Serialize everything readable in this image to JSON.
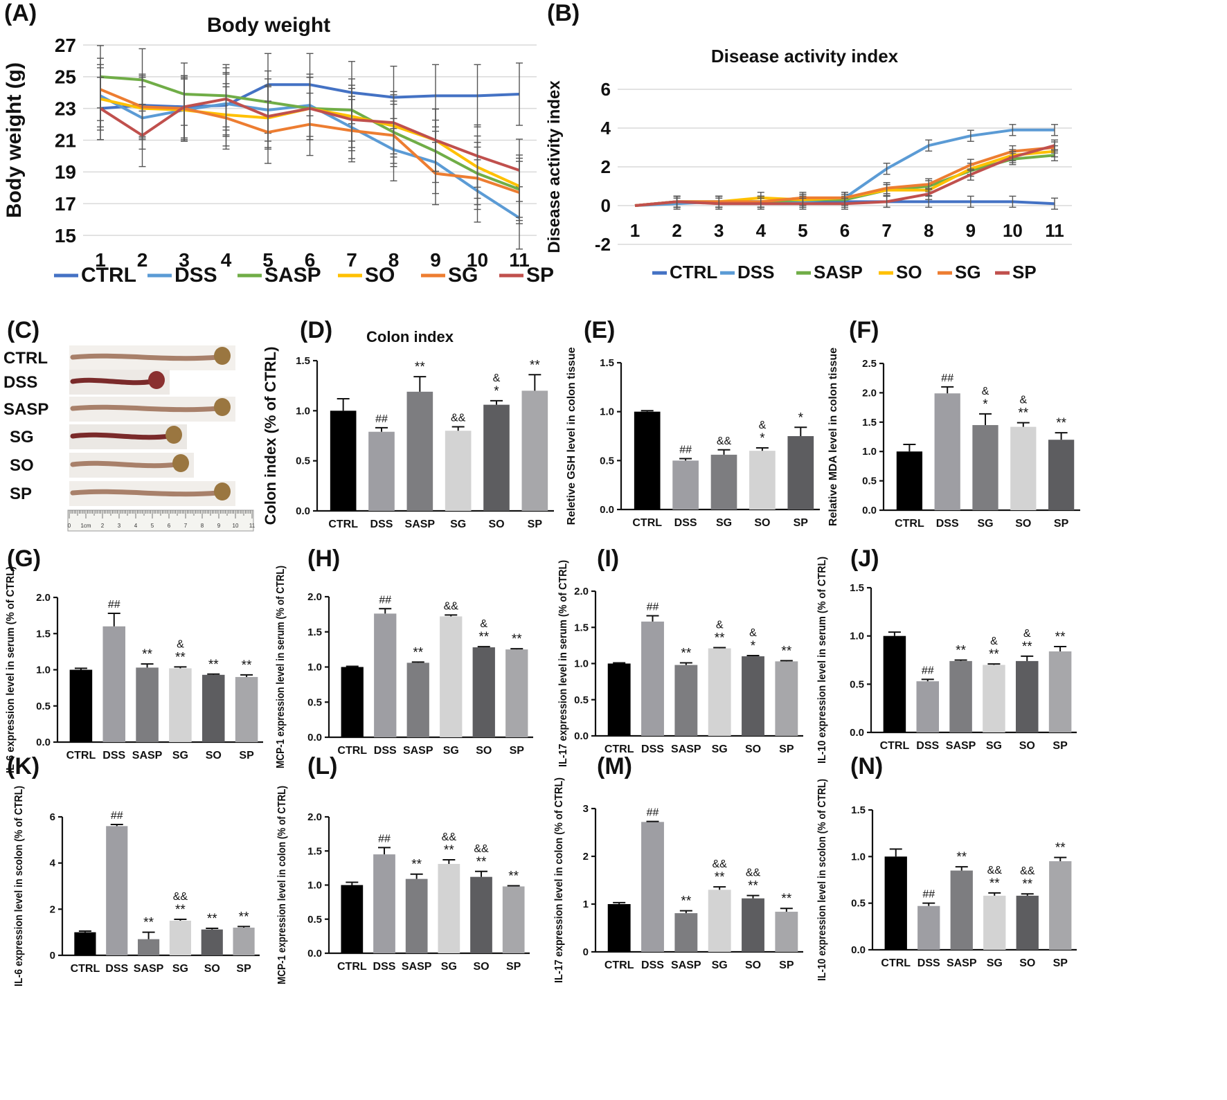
{
  "colors": {
    "CTRL": "#4472c4",
    "DSS": "#5b9bd5",
    "SASP": "#70ad47",
    "SO": "#ffc000",
    "SG": "#ed7d31",
    "SP": "#c0504d"
  },
  "chart_data": [
    {
      "id": "A",
      "panel_label": "(A)",
      "type": "line",
      "title": "Body weight",
      "xlabel": "",
      "ylabel": "Body weight (g)",
      "ylim": [
        15,
        27
      ],
      "yticks": [
        "15",
        "17",
        "19",
        "21",
        "23",
        "25",
        "27"
      ],
      "xticks": [
        "1",
        "2",
        "3",
        "4",
        "5",
        "6",
        "7",
        "8",
        "9",
        "10",
        "11"
      ],
      "grid": true,
      "series": [
        {
          "name": "CTRL",
          "values": [
            23.0,
            23.2,
            23.1,
            23.2,
            24.5,
            24.5,
            24.0,
            23.7,
            23.8,
            23.8,
            23.9
          ]
        },
        {
          "name": "DSS",
          "values": [
            23.8,
            22.4,
            22.9,
            23.3,
            22.9,
            23.2,
            21.8,
            20.4,
            19.6,
            17.8,
            16.1
          ]
        },
        {
          "name": "SASP",
          "values": [
            25.0,
            24.8,
            23.9,
            23.8,
            23.4,
            23.0,
            22.9,
            21.5,
            20.3,
            18.9,
            17.9
          ]
        },
        {
          "name": "SO",
          "values": [
            23.6,
            23.0,
            22.9,
            22.6,
            22.4,
            23.0,
            22.5,
            21.9,
            21.0,
            19.3,
            18.1
          ]
        },
        {
          "name": "SG",
          "values": [
            24.2,
            23.1,
            23.0,
            22.4,
            21.5,
            22.0,
            21.6,
            21.3,
            18.9,
            18.6,
            17.7
          ]
        },
        {
          "name": "SP",
          "values": [
            23.0,
            21.3,
            23.1,
            23.6,
            22.5,
            23.0,
            22.3,
            22.1,
            21.0,
            20.0,
            19.1
          ]
        }
      ]
    },
    {
      "id": "B",
      "panel_label": "(B)",
      "type": "line",
      "title": "Disease activity index",
      "xlabel": "",
      "ylabel": "Disease activity index",
      "ylim": [
        -2,
        6
      ],
      "yticks": [
        "-2",
        "0",
        "2",
        "4",
        "6"
      ],
      "xticks": [
        "1",
        "2",
        "3",
        "4",
        "5",
        "6",
        "7",
        "8",
        "9",
        "10",
        "11"
      ],
      "grid": true,
      "series": [
        {
          "name": "CTRL",
          "values": [
            0,
            0.2,
            0.2,
            0.2,
            0.2,
            0.2,
            0.2,
            0.2,
            0.2,
            0.2,
            0.1
          ]
        },
        {
          "name": "DSS",
          "values": [
            0,
            0.1,
            0.2,
            0.2,
            0.2,
            0.4,
            1.9,
            3.1,
            3.6,
            3.9,
            3.9
          ]
        },
        {
          "name": "SASP",
          "values": [
            0,
            0.2,
            0.2,
            0.2,
            0.3,
            0.3,
            0.8,
            1.0,
            1.8,
            2.4,
            2.6
          ]
        },
        {
          "name": "SO",
          "values": [
            0,
            0.2,
            0.2,
            0.4,
            0.3,
            0.4,
            0.8,
            0.8,
            1.9,
            2.6,
            2.8
          ]
        },
        {
          "name": "SG",
          "values": [
            0,
            0.2,
            0.2,
            0.2,
            0.4,
            0.4,
            0.9,
            1.1,
            2.1,
            2.8,
            3.0
          ]
        },
        {
          "name": "SP",
          "values": [
            0,
            0.2,
            0.1,
            0.1,
            0.1,
            0.1,
            0.2,
            0.6,
            1.6,
            2.5,
            3.1
          ]
        }
      ]
    },
    {
      "id": "D",
      "panel_label": "(D)",
      "type": "bar",
      "title": "Colon index",
      "ylabel": "Colon index (% of CTRL)",
      "ylim": [
        0,
        1.5
      ],
      "yticks": [
        "0.0",
        "0.5",
        "1.0",
        "1.5"
      ],
      "categories": [
        "CTRL",
        "DSS",
        "SASP",
        "SG",
        "SO",
        "SP"
      ],
      "values": [
        1.0,
        0.79,
        1.19,
        0.8,
        1.06,
        1.2
      ],
      "errors": [
        0.12,
        0.04,
        0.15,
        0.04,
        0.04,
        0.16
      ],
      "annotations": [
        [],
        [
          "##"
        ],
        [
          "**"
        ],
        [
          "&&"
        ],
        [
          "&",
          "*"
        ],
        [
          "**"
        ]
      ]
    },
    {
      "id": "E",
      "panel_label": "(E)",
      "type": "bar",
      "title": "",
      "ylabel": "Reletive GSH level in colon tissue",
      "ylim": [
        0,
        1.5
      ],
      "yticks": [
        "0.0",
        "0.5",
        "1.0",
        "1.5"
      ],
      "categories": [
        "CTRL",
        "DSS",
        "SG",
        "SO",
        "SP"
      ],
      "values": [
        1.0,
        0.5,
        0.56,
        0.6,
        0.75
      ],
      "errors": [
        0.01,
        0.02,
        0.05,
        0.03,
        0.09
      ],
      "annotations": [
        [],
        [
          "##"
        ],
        [
          "&&"
        ],
        [
          "&",
          "*"
        ],
        [
          "*"
        ]
      ]
    },
    {
      "id": "F",
      "panel_label": "(F)",
      "type": "bar",
      "title": "",
      "ylabel": "Relative MDA level in colon tissue",
      "ylim": [
        0,
        2.5
      ],
      "yticks": [
        "0.0",
        "0.5",
        "1.0",
        "1.5",
        "2.0",
        "2.5"
      ],
      "categories": [
        "CTRL",
        "DSS",
        "SG",
        "SO",
        "SP"
      ],
      "values": [
        1.0,
        1.99,
        1.45,
        1.42,
        1.2
      ],
      "errors": [
        0.12,
        0.11,
        0.19,
        0.07,
        0.12
      ],
      "annotations": [
        [],
        [
          "##"
        ],
        [
          "&",
          "*"
        ],
        [
          "&",
          "**"
        ],
        [
          "**"
        ]
      ]
    },
    {
      "id": "G",
      "panel_label": "(G)",
      "type": "bar",
      "title": "",
      "ylabel": "IL-6 expression level in serum (% of CTRL)",
      "ylim": [
        0,
        2.0
      ],
      "yticks": [
        "0.0",
        "0.5",
        "1.0",
        "1.5",
        "2.0"
      ],
      "categories": [
        "CTRL",
        "DSS",
        "SASP",
        "SG",
        "SO",
        "SP"
      ],
      "values": [
        1.0,
        1.6,
        1.03,
        1.02,
        0.93,
        0.9
      ],
      "errors": [
        0.02,
        0.18,
        0.05,
        0.02,
        0.01,
        0.03
      ],
      "annotations": [
        [],
        [
          "##"
        ],
        [
          "**"
        ],
        [
          "&",
          "**"
        ],
        [
          "**"
        ],
        [
          "**"
        ]
      ]
    },
    {
      "id": "H",
      "panel_label": "(H)",
      "type": "bar",
      "title": "",
      "ylabel": "MCP-1 expression level in serum (% of CTRL)",
      "ylim": [
        0,
        2.0
      ],
      "yticks": [
        "0.0",
        "0.5",
        "1.0",
        "1.5",
        "2.0"
      ],
      "categories": [
        "CTRL",
        "DSS",
        "SASP",
        "SG",
        "SO",
        "SP"
      ],
      "values": [
        1.0,
        1.76,
        1.06,
        1.72,
        1.28,
        1.25
      ],
      "errors": [
        0.01,
        0.07,
        0.01,
        0.02,
        0.01,
        0.01
      ],
      "annotations": [
        [],
        [
          "##"
        ],
        [
          "**"
        ],
        [
          "&&"
        ],
        [
          "&",
          "**"
        ],
        [
          "**"
        ]
      ]
    },
    {
      "id": "I",
      "panel_label": "(I)",
      "type": "bar",
      "title": "",
      "ylabel": "IL-17 expression level in serum (% of CTRL)",
      "ylim": [
        0,
        2.0
      ],
      "yticks": [
        "0.0",
        "0.5",
        "1.0",
        "1.5",
        "2.0"
      ],
      "categories": [
        "CTRL",
        "DSS",
        "SASP",
        "SG",
        "SO",
        "SP"
      ],
      "values": [
        1.0,
        1.58,
        0.98,
        1.21,
        1.1,
        1.03
      ],
      "errors": [
        0.01,
        0.08,
        0.03,
        0.01,
        0.01,
        0.01
      ],
      "annotations": [
        [],
        [
          "##"
        ],
        [
          "**"
        ],
        [
          "&",
          "**"
        ],
        [
          "&",
          "*"
        ],
        [
          "**"
        ]
      ]
    },
    {
      "id": "J",
      "panel_label": "(J)",
      "type": "bar",
      "title": "",
      "ylabel": "IL-10 expression level in serum (% of CTRL)",
      "ylim": [
        0,
        1.5
      ],
      "yticks": [
        "0.0",
        "0.5",
        "1.0",
        "1.5"
      ],
      "categories": [
        "CTRL",
        "DSS",
        "SASP",
        "SG",
        "SO",
        "SP"
      ],
      "values": [
        1.0,
        0.53,
        0.74,
        0.7,
        0.74,
        0.84
      ],
      "errors": [
        0.04,
        0.02,
        0.01,
        0.01,
        0.05,
        0.05
      ],
      "annotations": [
        [],
        [
          "##"
        ],
        [
          "**"
        ],
        [
          "&",
          "**"
        ],
        [
          "&",
          "**"
        ],
        [
          "**"
        ]
      ]
    },
    {
      "id": "K",
      "panel_label": "(K)",
      "type": "bar",
      "title": "",
      "ylabel": "IL-6 expression level in scolon (% of CTRL)",
      "ylim": [
        0,
        6
      ],
      "yticks": [
        "0",
        "2",
        "4",
        "6"
      ],
      "categories": [
        "CTRL",
        "DSS",
        "SASP",
        "SG",
        "SO",
        "SP"
      ],
      "values": [
        1.0,
        5.6,
        0.7,
        1.5,
        1.12,
        1.2
      ],
      "errors": [
        0.05,
        0.07,
        0.3,
        0.06,
        0.05,
        0.05
      ],
      "annotations": [
        [],
        [
          "##"
        ],
        [
          "**"
        ],
        [
          "&&",
          "**"
        ],
        [
          "**"
        ],
        [
          "**"
        ]
      ]
    },
    {
      "id": "L",
      "panel_label": "(L)",
      "type": "bar",
      "title": "",
      "ylabel": "MCP-1 expression level in colon (% of CTRL)",
      "ylim": [
        0,
        2.0
      ],
      "yticks": [
        "0.0",
        "0.5",
        "1.0",
        "1.5",
        "2.0"
      ],
      "categories": [
        "CTRL",
        "DSS",
        "SASP",
        "SG",
        "SO",
        "SP"
      ],
      "values": [
        1.0,
        1.45,
        1.09,
        1.31,
        1.12,
        0.98
      ],
      "errors": [
        0.04,
        0.1,
        0.07,
        0.06,
        0.08,
        0.01
      ],
      "annotations": [
        [],
        [
          "##"
        ],
        [
          "**"
        ],
        [
          "&&",
          "**"
        ],
        [
          "&&",
          "**"
        ],
        [
          "**"
        ]
      ]
    },
    {
      "id": "M",
      "panel_label": "(M)",
      "type": "bar",
      "title": "",
      "ylabel": "IL-17 expression level in colon (% of CTRL)",
      "ylim": [
        0,
        3
      ],
      "yticks": [
        "0",
        "1",
        "2",
        "3"
      ],
      "categories": [
        "CTRL",
        "DSS",
        "SASP",
        "SG",
        "SO",
        "SP"
      ],
      "values": [
        1.0,
        2.72,
        0.81,
        1.3,
        1.12,
        0.84
      ],
      "errors": [
        0.03,
        0.01,
        0.05,
        0.06,
        0.06,
        0.07
      ],
      "annotations": [
        [],
        [
          "##"
        ],
        [
          "**"
        ],
        [
          "&&",
          "**"
        ],
        [
          "&&",
          "**"
        ],
        [
          "**"
        ]
      ]
    },
    {
      "id": "N",
      "panel_label": "(N)",
      "type": "bar",
      "title": "",
      "ylabel": "IL-10 expression level in scolon (% of CTRL)",
      "ylim": [
        0,
        1.5
      ],
      "yticks": [
        "0.0",
        "0.5",
        "1.0",
        "1.5"
      ],
      "categories": [
        "CTRL",
        "DSS",
        "SASP",
        "SG",
        "SO",
        "SP"
      ],
      "values": [
        1.0,
        0.47,
        0.85,
        0.58,
        0.58,
        0.95
      ],
      "errors": [
        0.08,
        0.03,
        0.04,
        0.03,
        0.02,
        0.04
      ],
      "annotations": [
        [],
        [
          "##"
        ],
        [
          "**"
        ],
        [
          "&&",
          "**"
        ],
        [
          "&&",
          "**"
        ],
        [
          "**"
        ]
      ]
    }
  ],
  "panel_c": {
    "panel_label": "(C)",
    "rows": [
      "CTRL",
      "DSS",
      "SASP",
      "SG",
      "SO",
      "SP"
    ],
    "ruler_ticks": [
      "0",
      "1cm",
      "2",
      "3",
      "4",
      "5",
      "6",
      "7",
      "8",
      "9",
      "10",
      "11"
    ]
  }
}
